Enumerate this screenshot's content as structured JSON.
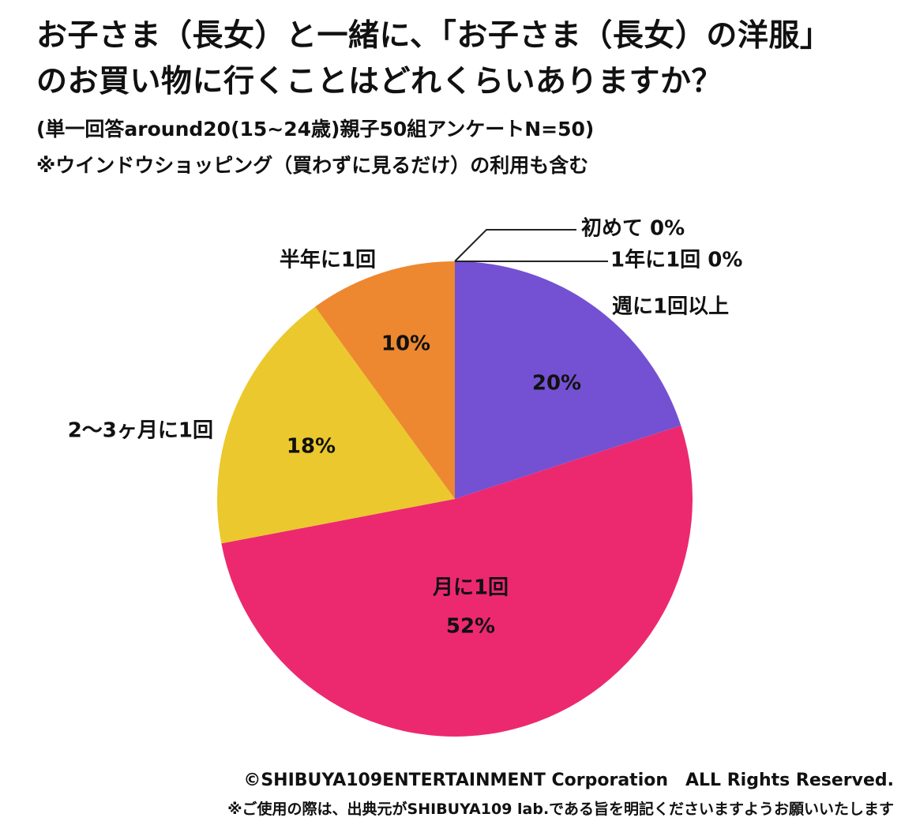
{
  "title": {
    "line1": "お子さま（長女）と一緒に、「お子さま（長女）の洋服」",
    "line2": "のお買い物に行くことはどれくらいありますか？"
  },
  "subtitle": {
    "line1": "(単一回答around20(15~24歳)親子50組アンケートN=50)",
    "line2": "※ウインドウショッピング（買わずに見るだけ）の利用も含む"
  },
  "chart_data": {
    "type": "pie",
    "start": "12 o'clock, clockwise",
    "slices": [
      {
        "label": "週に1回以上",
        "value": 20,
        "value_label": "20%",
        "color": "#7451D2"
      },
      {
        "label": "月に1回",
        "value": 52,
        "value_label": "52%",
        "color": "#EC296F"
      },
      {
        "label": "2〜3ヶ月に1回",
        "value": 18,
        "value_label": "18%",
        "color": "#EBC82D"
      },
      {
        "label": "半年に1回",
        "value": 10,
        "value_label": "10%",
        "color": "#ED8830"
      },
      {
        "label": "1年に1回",
        "value": 0,
        "value_label": "0%",
        "color": "#999999"
      },
      {
        "label": "初めて",
        "value": 0,
        "value_label": "0%",
        "color": "#999999"
      }
    ]
  },
  "footer": {
    "copyright": "©SHIBUYA109ENTERTAINMENT Corporation　ALL Rights Reserved.",
    "notice": "※ご使用の際は、出典元がSHIBUYA109 lab.である旨を明記くださいますようお願いいたします"
  }
}
